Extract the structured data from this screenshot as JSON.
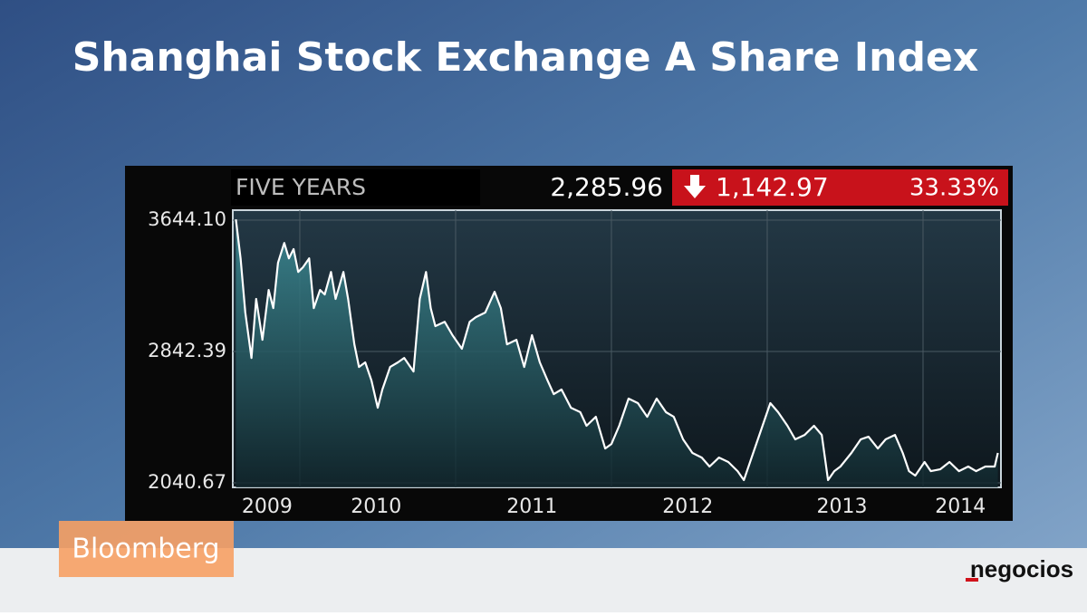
{
  "chart_data": {
    "type": "line",
    "title": "Shanghai Stock Exchange A Share Index",
    "header": {
      "period": "FIVE YEARS",
      "last": "2,285.96",
      "change": "1,142.97",
      "change_pct": "33.33%"
    },
    "color": "#ffffff",
    "x": [
      2009.59,
      2009.62,
      2009.65,
      2009.69,
      2009.72,
      2009.76,
      2009.8,
      2009.83,
      2009.86,
      2009.9,
      2009.93,
      2009.96,
      2009.99,
      2010.02,
      2010.06,
      2010.09,
      2010.13,
      2010.16,
      2010.2,
      2010.23,
      2010.28,
      2010.31,
      2010.35,
      2010.38,
      2010.42,
      2010.46,
      2010.5,
      2010.53,
      2010.58,
      2010.63,
      2010.67,
      2010.73,
      2010.77,
      2010.81,
      2010.84,
      2010.87,
      2010.93,
      2010.98,
      2011.04,
      2011.09,
      2011.13,
      2011.19,
      2011.25,
      2011.29,
      2011.33,
      2011.39,
      2011.44,
      2011.49,
      2011.54,
      2011.59,
      2011.63,
      2011.68,
      2011.74,
      2011.8,
      2011.84,
      2011.9,
      2011.96,
      2012.0,
      2012.05,
      2012.11,
      2012.17,
      2012.23,
      2012.29,
      2012.35,
      2012.4,
      2012.46,
      2012.52,
      2012.58,
      2012.63,
      2012.69,
      2012.75,
      2012.81,
      2012.85,
      2012.91,
      2012.97,
      2013.02,
      2013.07,
      2013.13,
      2013.18,
      2013.24,
      2013.3,
      2013.35,
      2013.39,
      2013.43,
      2013.47,
      2013.54,
      2013.6,
      2013.65,
      2013.71,
      2013.76,
      2013.82,
      2013.87,
      2013.91,
      2013.95,
      2014.01,
      2014.05,
      2014.11,
      2014.17,
      2014.23,
      2014.29,
      2014.34,
      2014.4,
      2014.46,
      2014.48
    ],
    "values": [
      3649,
      3411,
      3080,
      2803,
      3163,
      2914,
      3218,
      3107,
      3384,
      3505,
      3411,
      3467,
      3328,
      3356,
      3411,
      3107,
      3218,
      3190,
      3328,
      3163,
      3328,
      3163,
      2886,
      2748,
      2776,
      2665,
      2499,
      2610,
      2748,
      2776,
      2803,
      2720,
      3163,
      3328,
      3107,
      2997,
      3024,
      2942,
      2859,
      3024,
      3052,
      3080,
      3207,
      3107,
      2886,
      2914,
      2748,
      2942,
      2776,
      2665,
      2582,
      2610,
      2499,
      2472,
      2389,
      2444,
      2250,
      2278,
      2389,
      2555,
      2527,
      2444,
      2555,
      2472,
      2444,
      2306,
      2223,
      2195,
      2140,
      2195,
      2168,
      2112,
      2057,
      2223,
      2389,
      2527,
      2472,
      2389,
      2306,
      2333,
      2389,
      2333,
      2057,
      2112,
      2140,
      2223,
      2306,
      2322,
      2250,
      2306,
      2333,
      2223,
      2112,
      2085,
      2168,
      2112,
      2123,
      2168,
      2112,
      2140,
      2112,
      2140,
      2140,
      2223
    ],
    "xlim": [
      2009.57,
      2014.5
    ],
    "xticks": [
      {
        "value": 2009.79,
        "label": "2009"
      },
      {
        "value": 2010.49,
        "label": "2010"
      },
      {
        "value": 2011.49,
        "label": "2011"
      },
      {
        "value": 2012.49,
        "label": "2012"
      },
      {
        "value": 2013.48,
        "label": "2013"
      },
      {
        "value": 2014.24,
        "label": "2014"
      }
    ],
    "grid_x": [
      2010,
      2011,
      2012,
      2013,
      2014
    ],
    "ylim": [
      2013,
      3705
    ],
    "yticks": [
      2040.67,
      2842.39,
      {
        "value": 3644.1,
        "label": "3644.10"
      }
    ],
    "grid": true
  },
  "brand": "Bloomberg",
  "publisher": "negocios"
}
